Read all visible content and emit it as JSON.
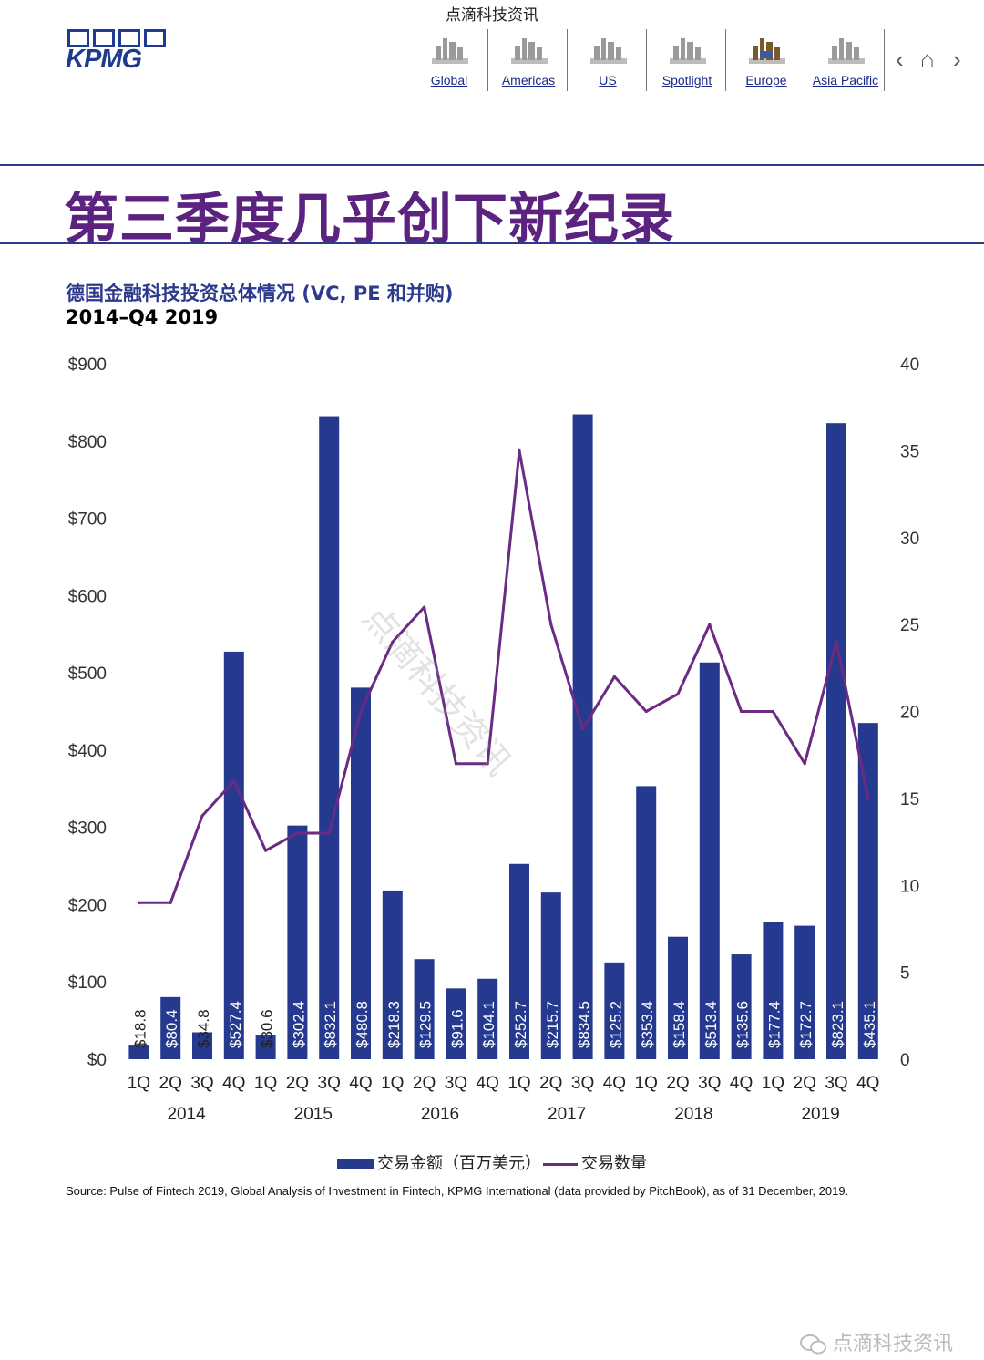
{
  "watermark_top": "点滴科技资讯",
  "logo_text": "KPMG",
  "nav": {
    "items": [
      {
        "label": "Global"
      },
      {
        "label": "Americas"
      },
      {
        "label": "US"
      },
      {
        "label": "Spotlight"
      },
      {
        "label": "Europe"
      },
      {
        "label": "Asia Pacific"
      }
    ],
    "prev_icon": "chevron-left-icon",
    "home_icon": "home-icon",
    "next_icon": "chevron-right-icon"
  },
  "headline": "第三季度几乎创下新纪录",
  "subtitle": "德国金融科技投资总体情况 (VC, PE 和并购)",
  "subtitle2": "2014–Q4 2019",
  "legend": {
    "bar_label": "交易金额（百万美元）",
    "line_label": "交易数量"
  },
  "source": "Source: Pulse of Fintech 2019, Global Analysis of Investment in Fintech, KPMG International (data provided by PitchBook), as of 31 December, 2019.",
  "watermark_bottom": "点滴科技资讯",
  "watermark_diagonal": "点滴科技资讯",
  "colors": {
    "bar": "#253a8e",
    "line": "#6b2a83",
    "headline": "#5b2280",
    "subtitle": "#2b3a8c"
  },
  "chart_data": {
    "type": "bar",
    "quarters": [
      "1Q",
      "2Q",
      "3Q",
      "4Q",
      "1Q",
      "2Q",
      "3Q",
      "4Q",
      "1Q",
      "2Q",
      "3Q",
      "4Q",
      "1Q",
      "2Q",
      "3Q",
      "4Q",
      "1Q",
      "2Q",
      "3Q",
      "4Q",
      "1Q",
      "2Q",
      "3Q",
      "4Q"
    ],
    "years": [
      "2014",
      "2015",
      "2016",
      "2017",
      "2018",
      "2019"
    ],
    "series": [
      {
        "name": "交易金额（百万美元）",
        "kind": "bar",
        "axis": "left",
        "values": [
          18.8,
          80.4,
          34.8,
          527.4,
          30.6,
          302.4,
          832.1,
          480.8,
          218.3,
          129.5,
          91.6,
          104.1,
          252.7,
          215.7,
          834.5,
          125.2,
          353.4,
          158.4,
          513.4,
          135.6,
          177.4,
          172.7,
          823.1,
          435.1
        ],
        "data_labels": [
          "$18.8",
          "$80.4",
          "$34.8",
          "$527.4",
          "$30.6",
          "$302.4",
          "$832.1",
          "$480.8",
          "$218.3",
          "$129.5",
          "$91.6",
          "$104.1",
          "$252.7",
          "$215.7",
          "$834.5",
          "$125.2",
          "$353.4",
          "$158.4",
          "$513.4",
          "$135.6",
          "$177.4",
          "$172.7",
          "$823.1",
          "$435.1"
        ]
      },
      {
        "name": "交易数量",
        "kind": "line",
        "axis": "right",
        "values": [
          9,
          9,
          14,
          16,
          12,
          13,
          13,
          20,
          24,
          26,
          17,
          17,
          35,
          25,
          19,
          22,
          20,
          21,
          25,
          20,
          20,
          17,
          24,
          15
        ]
      }
    ],
    "y_left": {
      "min": 0,
      "max": 900,
      "ticks": [
        0,
        100,
        200,
        300,
        400,
        500,
        600,
        700,
        800,
        900
      ],
      "tick_labels": [
        "$0",
        "$100",
        "$200",
        "$300",
        "$400",
        "$500",
        "$600",
        "$700",
        "$800",
        "$900"
      ]
    },
    "y_right": {
      "min": 0,
      "max": 40,
      "ticks": [
        0,
        5,
        10,
        15,
        20,
        25,
        30,
        35,
        40
      ],
      "tick_labels": [
        "0",
        "5",
        "10",
        "15",
        "20",
        "25",
        "30",
        "35",
        "40"
      ]
    },
    "grid": false,
    "legend_position": "bottom-center"
  }
}
